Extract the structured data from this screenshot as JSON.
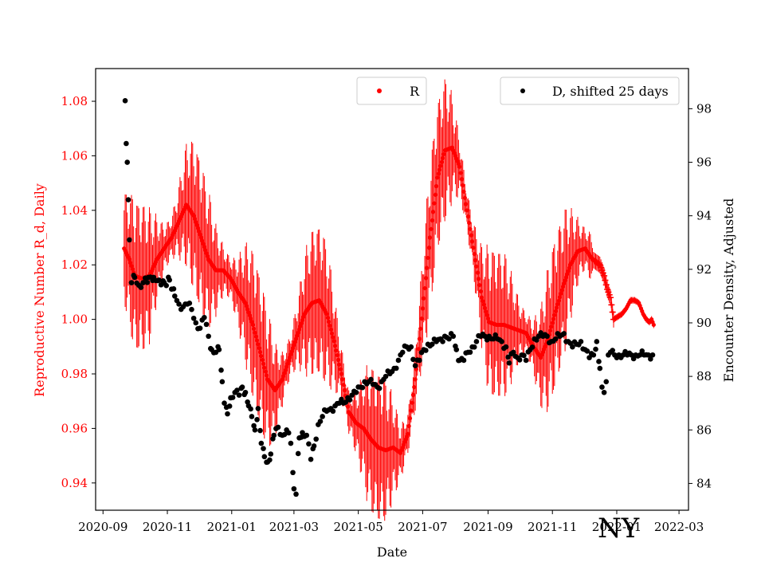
{
  "colors": {
    "r_series": "#ff0000",
    "d_series": "#000000",
    "axis": "#000000",
    "background": "#ffffff"
  },
  "chart_data": {
    "type": "scatter",
    "title": "",
    "annotation": "NY",
    "xlabel": "Date",
    "ylabel_left": "Reproductive Number R_d, Daily",
    "ylabel_right": "Encounter Density, Adjusted",
    "x_ticks": [
      "2020-09",
      "2020-11",
      "2021-01",
      "2021-03",
      "2021-05",
      "2021-07",
      "2021-09",
      "2021-11",
      "2022-01",
      "2022-03"
    ],
    "y_left_ticks": [
      "0.94",
      "0.96",
      "0.98",
      "1.00",
      "1.02",
      "1.04",
      "1.06",
      "1.08"
    ],
    "y_right_ticks": [
      "84",
      "86",
      "88",
      "90",
      "92",
      "94",
      "96",
      "98"
    ],
    "x_range": [
      "2020-08-25",
      "2022-03-10"
    ],
    "y_left_range": [
      0.93,
      1.092
    ],
    "y_right_range": [
      83.0,
      99.5
    ],
    "grid": false,
    "legend": [
      {
        "name": "R",
        "placement": "top-center"
      },
      {
        "name": "D, shifted 25 days",
        "placement": "top-right"
      }
    ],
    "series": [
      {
        "name": "R",
        "axis": "left",
        "marker": "dot-with-vertical-error-bars",
        "points": [
          [
            "2020-09-21",
            1.026
          ],
          [
            "2020-09-26",
            1.022
          ],
          [
            "2020-10-01",
            1.016
          ],
          [
            "2020-10-08",
            1.015
          ],
          [
            "2020-10-15",
            1.016
          ],
          [
            "2020-10-22",
            1.022
          ],
          [
            "2020-10-29",
            1.026
          ],
          [
            "2020-11-05",
            1.03
          ],
          [
            "2020-11-12",
            1.036
          ],
          [
            "2020-11-19",
            1.042
          ],
          [
            "2020-11-26",
            1.038
          ],
          [
            "2020-12-03",
            1.03
          ],
          [
            "2020-12-10",
            1.022
          ],
          [
            "2020-12-17",
            1.018
          ],
          [
            "2020-12-24",
            1.018
          ],
          [
            "2020-12-31",
            1.015
          ],
          [
            "2021-01-07",
            1.01
          ],
          [
            "2021-01-14",
            1.006
          ],
          [
            "2021-01-21",
            0.998
          ],
          [
            "2021-01-28",
            0.988
          ],
          [
            "2021-02-04",
            0.978
          ],
          [
            "2021-02-11",
            0.974
          ],
          [
            "2021-02-18",
            0.978
          ],
          [
            "2021-02-25",
            0.986
          ],
          [
            "2021-03-04",
            0.994
          ],
          [
            "2021-03-11",
            1.002
          ],
          [
            "2021-03-18",
            1.006
          ],
          [
            "2021-03-25",
            1.007
          ],
          [
            "2021-04-01",
            1.002
          ],
          [
            "2021-04-08",
            0.992
          ],
          [
            "2021-04-15",
            0.98
          ],
          [
            "2021-04-22",
            0.966
          ],
          [
            "2021-04-29",
            0.962
          ],
          [
            "2021-05-06",
            0.96
          ],
          [
            "2021-05-13",
            0.956
          ],
          [
            "2021-05-20",
            0.953
          ],
          [
            "2021-05-27",
            0.952
          ],
          [
            "2021-06-03",
            0.953
          ],
          [
            "2021-06-10",
            0.951
          ],
          [
            "2021-06-17",
            0.958
          ],
          [
            "2021-06-24",
            0.978
          ],
          [
            "2021-07-01",
            1.004
          ],
          [
            "2021-07-08",
            1.03
          ],
          [
            "2021-07-15",
            1.052
          ],
          [
            "2021-07-22",
            1.062
          ],
          [
            "2021-07-29",
            1.063
          ],
          [
            "2021-08-05",
            1.056
          ],
          [
            "2021-08-12",
            1.04
          ],
          [
            "2021-08-19",
            1.024
          ],
          [
            "2021-08-26",
            1.008
          ],
          [
            "2021-09-02",
            0.999
          ],
          [
            "2021-09-09",
            0.998
          ],
          [
            "2021-09-16",
            0.998
          ],
          [
            "2021-09-23",
            0.997
          ],
          [
            "2021-09-30",
            0.996
          ],
          [
            "2021-10-07",
            0.995
          ],
          [
            "2021-10-14",
            0.99
          ],
          [
            "2021-10-21",
            0.986
          ],
          [
            "2021-10-28",
            0.993
          ],
          [
            "2021-11-04",
            1.003
          ],
          [
            "2021-11-11",
            1.012
          ],
          [
            "2021-11-18",
            1.02
          ],
          [
            "2021-11-25",
            1.025
          ],
          [
            "2021-12-02",
            1.026
          ],
          [
            "2021-12-09",
            1.022
          ],
          [
            "2021-12-16",
            1.02
          ],
          [
            "2021-12-20",
            1.016
          ],
          [
            "2021-12-23",
            1.011
          ],
          [
            "2021-12-26",
            1.008
          ],
          [
            "2021-12-29",
            1.0
          ],
          [
            "2022-01-02",
            1.001
          ],
          [
            "2022-01-06",
            1.002
          ],
          [
            "2022-01-10",
            1.004
          ],
          [
            "2022-01-14",
            1.007
          ],
          [
            "2022-01-18",
            1.007
          ],
          [
            "2022-01-22",
            1.006
          ],
          [
            "2022-01-26",
            1.002
          ],
          [
            "2022-01-29",
            1.0
          ],
          [
            "2022-02-01",
            0.999
          ],
          [
            "2022-02-03",
            1.0
          ],
          [
            "2022-02-05",
            0.998
          ]
        ]
      },
      {
        "name": "D, shifted 25 days",
        "axis": "right",
        "marker": "dot",
        "points": [
          [
            "2020-09-22",
            98.3
          ],
          [
            "2020-09-23",
            96.7
          ],
          [
            "2020-09-24",
            96.0
          ],
          [
            "2020-09-25",
            94.6
          ],
          [
            "2020-09-26",
            93.1
          ],
          [
            "2020-09-28",
            91.5
          ],
          [
            "2020-10-01",
            91.7
          ],
          [
            "2020-10-05",
            91.4
          ],
          [
            "2020-10-09",
            91.5
          ],
          [
            "2020-10-14",
            91.7
          ],
          [
            "2020-10-19",
            91.7
          ],
          [
            "2020-10-24",
            91.6
          ],
          [
            "2020-10-29",
            91.5
          ],
          [
            "2020-11-03",
            91.6
          ],
          [
            "2020-11-08",
            91.0
          ],
          [
            "2020-11-12",
            90.7
          ],
          [
            "2020-11-16",
            90.6
          ],
          [
            "2020-11-20",
            90.7
          ],
          [
            "2020-11-24",
            90.5
          ],
          [
            "2020-11-28",
            90.0
          ],
          [
            "2020-12-02",
            89.8
          ],
          [
            "2020-12-06",
            90.2
          ],
          [
            "2020-12-10",
            89.5
          ],
          [
            "2020-12-13",
            89.0
          ],
          [
            "2020-12-17",
            88.9
          ],
          [
            "2020-12-20",
            89.0
          ],
          [
            "2020-12-23",
            87.8
          ],
          [
            "2020-12-25",
            87.0
          ],
          [
            "2020-12-28",
            86.6
          ],
          [
            "2020-12-31",
            87.2
          ],
          [
            "2021-01-04",
            87.4
          ],
          [
            "2021-01-08",
            87.3
          ],
          [
            "2021-01-11",
            87.6
          ],
          [
            "2021-01-14",
            87.4
          ],
          [
            "2021-01-17",
            86.9
          ],
          [
            "2021-01-20",
            86.5
          ],
          [
            "2021-01-23",
            86.0
          ],
          [
            "2021-01-26",
            86.8
          ],
          [
            "2021-01-29",
            85.5
          ],
          [
            "2021-02-01",
            85.0
          ],
          [
            "2021-02-04",
            84.8
          ],
          [
            "2021-02-07",
            85.1
          ],
          [
            "2021-02-10",
            85.8
          ],
          [
            "2021-02-14",
            86.1
          ],
          [
            "2021-02-18",
            85.8
          ],
          [
            "2021-02-22",
            86.0
          ],
          [
            "2021-02-26",
            85.5
          ],
          [
            "2021-03-01",
            83.8
          ],
          [
            "2021-03-03",
            83.6
          ],
          [
            "2021-03-06",
            85.7
          ],
          [
            "2021-03-09",
            85.9
          ],
          [
            "2021-03-13",
            85.8
          ],
          [
            "2021-03-17",
            84.9
          ],
          [
            "2021-03-20",
            85.4
          ],
          [
            "2021-03-24",
            86.2
          ],
          [
            "2021-03-28",
            86.5
          ],
          [
            "2021-04-01",
            86.7
          ],
          [
            "2021-04-05",
            86.8
          ],
          [
            "2021-04-09",
            86.9
          ],
          [
            "2021-04-13",
            87.0
          ],
          [
            "2021-04-17",
            87.0
          ],
          [
            "2021-04-21",
            87.2
          ],
          [
            "2021-04-25",
            87.3
          ],
          [
            "2021-04-29",
            87.4
          ],
          [
            "2021-05-03",
            87.6
          ],
          [
            "2021-05-07",
            87.8
          ],
          [
            "2021-05-11",
            87.8
          ],
          [
            "2021-05-15",
            87.7
          ],
          [
            "2021-05-19",
            87.6
          ],
          [
            "2021-05-23",
            87.8
          ],
          [
            "2021-05-27",
            88.0
          ],
          [
            "2021-05-31",
            88.1
          ],
          [
            "2021-06-04",
            88.3
          ],
          [
            "2021-06-08",
            88.6
          ],
          [
            "2021-06-12",
            88.9
          ],
          [
            "2021-06-16",
            89.1
          ],
          [
            "2021-06-20",
            89.1
          ],
          [
            "2021-06-24",
            88.4
          ],
          [
            "2021-06-28",
            88.6
          ],
          [
            "2021-07-02",
            89.0
          ],
          [
            "2021-07-06",
            89.2
          ],
          [
            "2021-07-10",
            89.2
          ],
          [
            "2021-07-14",
            89.3
          ],
          [
            "2021-07-18",
            89.4
          ],
          [
            "2021-07-22",
            89.5
          ],
          [
            "2021-07-26",
            89.4
          ],
          [
            "2021-07-30",
            89.5
          ],
          [
            "2021-08-02",
            89.0
          ],
          [
            "2021-08-05",
            88.6
          ],
          [
            "2021-08-09",
            88.6
          ],
          [
            "2021-08-13",
            88.9
          ],
          [
            "2021-08-17",
            89.1
          ],
          [
            "2021-08-21",
            89.3
          ],
          [
            "2021-08-25",
            89.5
          ],
          [
            "2021-08-29",
            89.5
          ],
          [
            "2021-09-02",
            89.5
          ],
          [
            "2021-09-06",
            89.4
          ],
          [
            "2021-09-10",
            89.4
          ],
          [
            "2021-09-14",
            89.3
          ],
          [
            "2021-09-18",
            89.1
          ],
          [
            "2021-09-21",
            88.5
          ],
          [
            "2021-09-25",
            88.9
          ],
          [
            "2021-09-29",
            88.7
          ],
          [
            "2021-10-03",
            88.8
          ],
          [
            "2021-10-07",
            88.6
          ],
          [
            "2021-10-11",
            89.0
          ],
          [
            "2021-10-15",
            89.4
          ],
          [
            "2021-10-19",
            89.5
          ],
          [
            "2021-10-23",
            89.5
          ],
          [
            "2021-10-27",
            89.5
          ],
          [
            "2021-10-31",
            89.3
          ],
          [
            "2021-11-04",
            89.4
          ],
          [
            "2021-11-08",
            89.5
          ],
          [
            "2021-11-12",
            89.6
          ],
          [
            "2021-11-16",
            89.3
          ],
          [
            "2021-11-20",
            89.1
          ],
          [
            "2021-11-24",
            89.2
          ],
          [
            "2021-11-28",
            89.3
          ],
          [
            "2021-12-02",
            89.0
          ],
          [
            "2021-12-06",
            88.7
          ],
          [
            "2021-12-10",
            88.8
          ],
          [
            "2021-12-13",
            89.3
          ],
          [
            "2021-12-16",
            88.3
          ],
          [
            "2021-12-18",
            87.6
          ],
          [
            "2021-12-20",
            87.4
          ],
          [
            "2021-12-22",
            87.8
          ],
          [
            "2021-12-24",
            88.8
          ],
          [
            "2021-12-26",
            88.9
          ],
          [
            "2021-12-30",
            88.8
          ],
          [
            "2022-01-03",
            88.8
          ],
          [
            "2022-01-07",
            88.8
          ],
          [
            "2022-01-11",
            88.8
          ],
          [
            "2022-01-15",
            88.8
          ],
          [
            "2022-01-19",
            88.8
          ],
          [
            "2022-01-23",
            88.8
          ],
          [
            "2022-01-27",
            88.8
          ],
          [
            "2022-01-31",
            88.8
          ],
          [
            "2022-02-04",
            88.8
          ]
        ]
      }
    ]
  }
}
